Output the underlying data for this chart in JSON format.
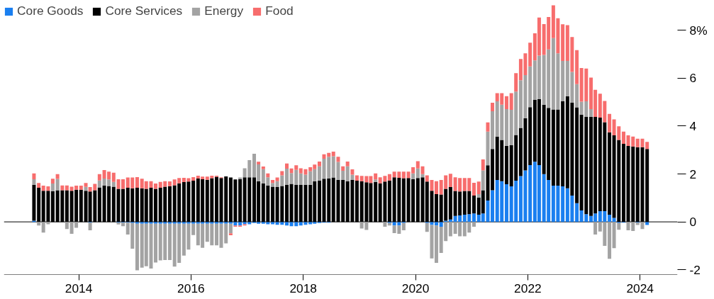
{
  "chart_data": {
    "type": "bar",
    "stacked": true,
    "legend": "top left",
    "x": [
      "2013-03",
      "2013-04",
      "2013-05",
      "2013-06",
      "2013-07",
      "2013-08",
      "2013-09",
      "2013-10",
      "2013-11",
      "2013-12",
      "2014-01",
      "2014-02",
      "2014-03",
      "2014-04",
      "2014-05",
      "2014-06",
      "2014-07",
      "2014-08",
      "2014-09",
      "2014-10",
      "2014-11",
      "2014-12",
      "2015-01",
      "2015-02",
      "2015-03",
      "2015-04",
      "2015-05",
      "2015-06",
      "2015-07",
      "2015-08",
      "2015-09",
      "2015-10",
      "2015-11",
      "2015-12",
      "2016-01",
      "2016-02",
      "2016-03",
      "2016-04",
      "2016-05",
      "2016-06",
      "2016-07",
      "2016-08",
      "2016-09",
      "2016-10",
      "2016-11",
      "2016-12",
      "2017-01",
      "2017-02",
      "2017-03",
      "2017-04",
      "2017-05",
      "2017-06",
      "2017-07",
      "2017-08",
      "2017-09",
      "2017-10",
      "2017-11",
      "2017-12",
      "2018-01",
      "2018-02",
      "2018-03",
      "2018-04",
      "2018-05",
      "2018-06",
      "2018-07",
      "2018-08",
      "2018-09",
      "2018-10",
      "2018-11",
      "2018-12",
      "2019-01",
      "2019-02",
      "2019-03",
      "2019-04",
      "2019-05",
      "2019-06",
      "2019-07",
      "2019-08",
      "2019-09",
      "2019-10",
      "2019-11",
      "2019-12",
      "2020-01",
      "2020-02",
      "2020-03",
      "2020-04",
      "2020-05",
      "2020-06",
      "2020-07",
      "2020-08",
      "2020-09",
      "2020-10",
      "2020-11",
      "2020-12",
      "2021-01",
      "2021-02",
      "2021-03",
      "2021-04",
      "2021-05",
      "2021-06",
      "2021-07",
      "2021-08",
      "2021-09",
      "2021-10",
      "2021-11",
      "2021-12",
      "2022-01",
      "2022-02",
      "2022-03",
      "2022-04",
      "2022-05",
      "2022-06",
      "2022-07",
      "2022-08",
      "2022-09",
      "2022-10",
      "2022-11",
      "2022-12",
      "2023-01",
      "2023-02",
      "2023-03",
      "2023-04",
      "2023-05",
      "2023-06",
      "2023-07",
      "2023-08",
      "2023-09",
      "2023-10",
      "2023-11",
      "2023-12",
      "2024-01",
      "2024-02"
    ],
    "series": [
      {
        "name": "Core Goods",
        "color": "#1a7ff0",
        "values": [
          0.05,
          null,
          null,
          null,
          null,
          null,
          null,
          null,
          null,
          null,
          null,
          null,
          -0.03,
          null,
          null,
          null,
          null,
          null,
          -0.03,
          -0.03,
          -0.03,
          -0.05,
          -0.08,
          -0.08,
          -0.08,
          -0.08,
          -0.08,
          -0.08,
          -0.08,
          -0.08,
          -0.08,
          -0.08,
          -0.08,
          -0.08,
          -0.08,
          -0.08,
          -0.08,
          -0.08,
          -0.08,
          -0.08,
          -0.08,
          -0.08,
          -0.08,
          -0.15,
          -0.15,
          -0.1,
          -0.1,
          -0.05,
          -0.08,
          -0.08,
          -0.1,
          -0.1,
          -0.12,
          -0.12,
          -0.15,
          -0.18,
          -0.18,
          -0.15,
          -0.12,
          -0.1,
          -0.08,
          -0.05,
          -0.03,
          -0.03,
          null,
          null,
          null,
          null,
          null,
          null,
          null,
          null,
          null,
          null,
          null,
          null,
          -0.05,
          -0.15,
          -0.15,
          -0.05,
          null,
          null,
          null,
          null,
          -0.05,
          -0.13,
          -0.15,
          -0.2,
          0.05,
          0.1,
          0.25,
          0.27,
          0.3,
          0.32,
          0.35,
          0.3,
          0.35,
          0.89,
          1.32,
          1.75,
          1.7,
          1.57,
          1.48,
          1.72,
          1.91,
          2.15,
          2.37,
          2.51,
          2.37,
          1.99,
          1.75,
          1.51,
          1.51,
          1.48,
          1.4,
          1.1,
          0.78,
          0.48,
          0.32,
          0.25,
          0.35,
          0.45,
          0.45,
          0.3,
          0.17,
          -0.05,
          -0.03,
          null,
          null,
          -0.03,
          null,
          -0.13
        ]
      },
      {
        "name": "Core Services",
        "color": "#000000",
        "values": [
          1.5,
          1.42,
          1.3,
          1.3,
          1.28,
          1.32,
          1.32,
          1.32,
          1.3,
          1.34,
          1.34,
          1.3,
          1.27,
          1.32,
          1.44,
          1.52,
          1.5,
          1.47,
          1.38,
          1.38,
          1.42,
          1.4,
          1.42,
          1.4,
          1.38,
          1.42,
          1.38,
          1.42,
          1.47,
          1.49,
          1.53,
          1.61,
          1.66,
          1.68,
          1.72,
          1.81,
          1.78,
          1.76,
          1.82,
          1.88,
          1.83,
          1.9,
          1.85,
          1.77,
          1.78,
          1.86,
          1.86,
          1.86,
          1.7,
          1.61,
          1.52,
          1.47,
          1.45,
          1.5,
          1.54,
          1.59,
          1.54,
          1.54,
          1.55,
          1.55,
          1.7,
          1.73,
          1.8,
          1.81,
          1.85,
          1.76,
          1.75,
          1.7,
          1.75,
          1.72,
          1.7,
          1.65,
          1.62,
          1.67,
          1.61,
          1.68,
          1.73,
          1.86,
          1.84,
          1.82,
          1.83,
          1.78,
          1.83,
          1.86,
          1.68,
          1.3,
          1.16,
          1.14,
          1.33,
          1.35,
          1.04,
          1.0,
          0.99,
          0.97,
          0.75,
          0.72,
          0.97,
          1.47,
          1.72,
          1.81,
          1.72,
          1.61,
          1.72,
          1.91,
          2.01,
          2.18,
          2.42,
          2.58,
          2.75,
          2.9,
          3.01,
          3.18,
          3.18,
          3.55,
          3.85,
          3.87,
          4.0,
          4.0,
          4.06,
          4.14,
          4.03,
          3.9,
          3.71,
          3.44,
          3.44,
          3.42,
          3.26,
          3.17,
          3.15,
          3.12,
          3.12,
          3.04
        ]
      },
      {
        "name": "Energy",
        "color": "#a3a3a3",
        "values": [
          0.23,
          -0.15,
          -0.45,
          -0.1,
          0.32,
          0.47,
          null,
          -0.3,
          -0.5,
          -0.25,
          null,
          0.16,
          -0.32,
          null,
          0.29,
          0.29,
          0.27,
          0.2,
          -0.08,
          -0.15,
          -0.5,
          -1.07,
          -1.94,
          -1.83,
          -1.77,
          -1.87,
          -1.62,
          -1.53,
          -1.51,
          -1.51,
          -1.79,
          -1.63,
          -1.33,
          -1.08,
          -0.47,
          -0.9,
          -1.0,
          -0.75,
          -0.9,
          -0.9,
          -1.0,
          -0.82,
          -0.4,
          null,
          0.07,
          0.38,
          0.72,
          0.98,
          0.7,
          0.59,
          0.34,
          0.15,
          0.25,
          0.44,
          0.68,
          0.45,
          0.63,
          0.48,
          0.42,
          0.56,
          0.5,
          0.59,
          0.84,
          0.91,
          0.89,
          0.74,
          0.38,
          0.62,
          0.22,
          null,
          -0.28,
          -0.34,
          null,
          0.1,
          null,
          -0.2,
          -0.1,
          -0.32,
          -0.35,
          -0.3,
          null,
          0.24,
          0.4,
          0.13,
          -0.37,
          -1.4,
          -1.56,
          -1.1,
          -0.8,
          -0.6,
          -0.5,
          -0.6,
          -0.6,
          -0.45,
          -0.2,
          0.14,
          0.83,
          1.41,
          1.58,
          1.47,
          1.47,
          1.53,
          1.48,
          1.81,
          1.99,
          1.8,
          1.7,
          1.65,
          1.82,
          2.08,
          2.44,
          2.98,
          2.35,
          1.69,
          1.47,
          1.29,
          0.97,
          0.54,
          0.65,
          0.32,
          -0.53,
          -0.4,
          -1.0,
          -1.54,
          -1.1,
          -0.28,
          null,
          -0.35,
          -0.38,
          -0.1,
          -0.3,
          null
        ]
      },
      {
        "name": "Food",
        "color": "#f76d6d",
        "values": [
          0.24,
          0.2,
          0.21,
          0.18,
          0.2,
          0.2,
          0.2,
          0.2,
          0.17,
          0.17,
          0.17,
          0.16,
          0.18,
          0.27,
          0.26,
          0.35,
          0.33,
          0.38,
          0.4,
          0.4,
          0.43,
          0.45,
          0.45,
          0.4,
          0.32,
          0.28,
          0.22,
          0.25,
          0.23,
          0.2,
          0.24,
          0.22,
          0.18,
          0.14,
          0.15,
          0.12,
          0.11,
          0.13,
          0.11,
          0.05,
          0.03,
          null,
          -0.08,
          -0.05,
          -0.05,
          -0.05,
          null,
          null,
          0.11,
          0.11,
          0.16,
          0.13,
          0.15,
          0.18,
          0.22,
          0.19,
          0.19,
          0.22,
          0.23,
          0.17,
          0.19,
          0.2,
          0.18,
          0.16,
          0.19,
          0.22,
          0.19,
          0.2,
          0.22,
          0.22,
          0.22,
          0.26,
          0.29,
          0.25,
          0.25,
          0.24,
          0.26,
          0.24,
          0.26,
          0.28,
          0.27,
          0.26,
          0.3,
          0.33,
          0.26,
          0.45,
          0.54,
          0.61,
          0.56,
          0.56,
          0.57,
          0.56,
          0.54,
          0.54,
          0.53,
          0.52,
          0.46,
          0.38,
          0.35,
          0.34,
          0.48,
          0.54,
          0.69,
          0.77,
          0.89,
          0.91,
          0.99,
          1.13,
          1.59,
          1.29,
          1.35,
          1.37,
          1.46,
          1.53,
          1.49,
          1.46,
          1.42,
          1.4,
          1.37,
          1.31,
          1.13,
          1.0,
          0.89,
          0.77,
          0.67,
          0.57,
          0.51,
          0.44,
          0.41,
          0.35,
          0.35,
          0.3
        ]
      }
    ],
    "xlim": [
      "2012-09",
      "2024-09"
    ],
    "xticks": [
      "2014",
      "2016",
      "2018",
      "2020",
      "2022",
      "2024"
    ],
    "ylim": [
      -2.2,
      9.1
    ],
    "yticks": [
      {
        "value": 8,
        "label": "8%"
      },
      6,
      4,
      2,
      0,
      -2
    ],
    "ref_lines": [
      {
        "axis": "y",
        "value": 0,
        "color": "#000000"
      }
    ]
  }
}
